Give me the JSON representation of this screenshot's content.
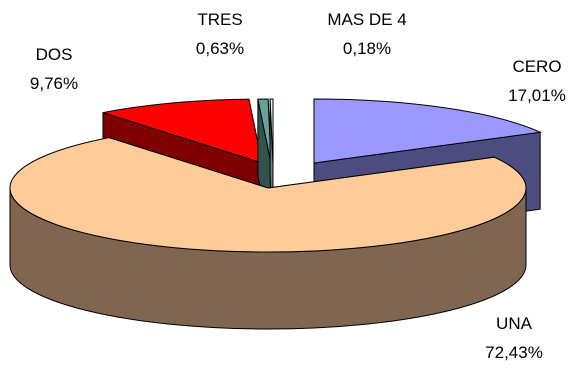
{
  "chart_data": {
    "type": "pie",
    "style": "3d-exploded",
    "title": "",
    "categories": [
      "CERO",
      "UNA",
      "DOS",
      "TRES",
      "MAS DE 4"
    ],
    "values": [
      17.01,
      72.43,
      9.76,
      0.63,
      0.18
    ],
    "value_labels": [
      "17,01%",
      "72,43%",
      "9,76%",
      "0,63%",
      "0,18%"
    ],
    "colors": {
      "CERO": {
        "top": "#9999ff",
        "side": "#4c4c80"
      },
      "UNA": {
        "top": "#ffcc99",
        "side": "#806650"
      },
      "DOS": {
        "top": "#ff0000",
        "side": "#800000"
      },
      "TRES": {
        "top": "#66a39a",
        "side": "#33514d"
      },
      "MAS DE 4": {
        "top": "#ccffff",
        "side": "#668080"
      }
    },
    "legend": "none",
    "data_labels": "category and percent"
  }
}
